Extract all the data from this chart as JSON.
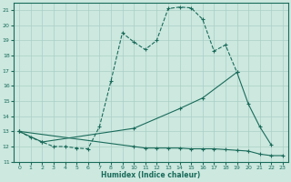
{
  "xlabel": "Humidex (Indice chaleur)",
  "xlim": [
    -0.5,
    23.5
  ],
  "ylim": [
    11.0,
    21.5
  ],
  "yticks": [
    11,
    12,
    13,
    14,
    15,
    16,
    17,
    18,
    19,
    20,
    21
  ],
  "xticks": [
    0,
    1,
    2,
    3,
    4,
    5,
    6,
    7,
    8,
    9,
    10,
    11,
    12,
    13,
    14,
    15,
    16,
    17,
    18,
    19,
    20,
    21,
    22,
    23
  ],
  "bg_color": "#cce8df",
  "grid_color": "#aacfc5",
  "line_color": "#1a6b5a",
  "line1_x": [
    0,
    1,
    2,
    3,
    4,
    5,
    6,
    7,
    8,
    9,
    10,
    11,
    12,
    13,
    14,
    15,
    16,
    17,
    18,
    19
  ],
  "line1_y": [
    13.0,
    12.6,
    12.3,
    12.0,
    12.0,
    11.9,
    11.85,
    13.3,
    16.3,
    19.5,
    18.9,
    18.4,
    19.0,
    21.1,
    21.2,
    21.15,
    20.4,
    18.3,
    18.7,
    16.9
  ],
  "line2_x": [
    0,
    2,
    10,
    14,
    16,
    19,
    20,
    21,
    22
  ],
  "line2_y": [
    13.0,
    12.3,
    13.2,
    14.5,
    15.2,
    16.9,
    14.8,
    13.3,
    12.1
  ],
  "line3_x": [
    0,
    10,
    11,
    12,
    13,
    14,
    15,
    16,
    17,
    18,
    19,
    20,
    21,
    22,
    23
  ],
  "line3_y": [
    13.0,
    12.0,
    11.9,
    11.9,
    11.9,
    11.9,
    11.85,
    11.85,
    11.85,
    11.8,
    11.75,
    11.7,
    11.5,
    11.4,
    11.4
  ]
}
